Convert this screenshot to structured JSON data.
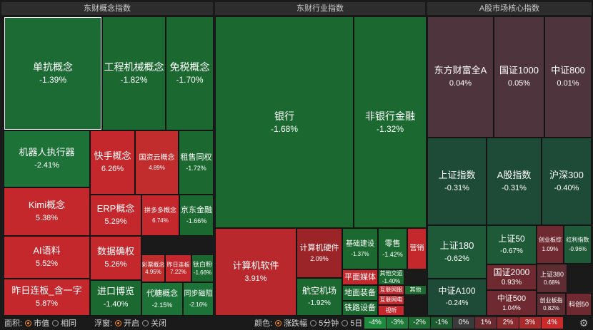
{
  "panels": [
    "东财概念指数",
    "东财行业指数",
    "A股市场核心指数"
  ],
  "tiles": [
    {
      "name": "单抗概念",
      "pct": "-1.39%",
      "color": "#1c6b34",
      "selected": true
    },
    {
      "name": "工程机械概念",
      "pct": "-1.82%",
      "color": "#1b6930"
    },
    {
      "name": "免税概念",
      "pct": "-1.70%",
      "color": "#1b6930"
    },
    {
      "name": "机器人执行器",
      "pct": "-2.41%",
      "color": "#1d7238"
    },
    {
      "name": "快手概念",
      "pct": "6.26%",
      "color": "#c4282c"
    },
    {
      "name": "国资云概念",
      "pct": "4.89%",
      "color": "#c12c2d"
    },
    {
      "name": "租售同权",
      "pct": "-1.72%",
      "color": "#1b6930"
    },
    {
      "name": "Kimi概念",
      "pct": "5.38%",
      "color": "#c4282c"
    },
    {
      "name": "ERP概念",
      "pct": "5.29%",
      "color": "#c4282c"
    },
    {
      "name": "拼多多概念",
      "pct": "6.74%",
      "color": "#c4282c"
    },
    {
      "name": "京东金融",
      "pct": "-1.66%",
      "color": "#1b6930"
    },
    {
      "name": "AI语料",
      "pct": "5.52%",
      "color": "#c4282c"
    },
    {
      "name": "数据确权",
      "pct": "5.26%",
      "color": "#c4282c"
    },
    {
      "name": "彩票概念",
      "pct": "4.95%",
      "color": "#c12c2d"
    },
    {
      "name": "昨日连板",
      "pct": "7.22%",
      "color": "#c4282c"
    },
    {
      "name": "钛白粉",
      "pct": "-1.66%",
      "color": "#1b6930"
    },
    {
      "name": "昨日连板_含一字",
      "pct": "5.87%",
      "color": "#c4282c"
    },
    {
      "name": "进口博览",
      "pct": "-1.40%",
      "color": "#1b6930"
    },
    {
      "name": "代糖概念",
      "pct": "-2.15%",
      "color": "#1d7238"
    },
    {
      "name": "同步磁阻",
      "pct": "-2.16%",
      "color": "#1d7238"
    },
    {
      "name": "银行",
      "pct": "-1.68%",
      "color": "#1b6930"
    },
    {
      "name": "非银行金融",
      "pct": "-1.32%",
      "color": "#1b6930"
    },
    {
      "name": "计算机软件",
      "pct": "3.91%",
      "color": "#b8282c"
    },
    {
      "name": "计算机硬件",
      "pct": "2.09%",
      "color": "#9a2428"
    },
    {
      "name": "基础建设",
      "pct": "-1.37%",
      "color": "#1b6930"
    },
    {
      "name": "零售",
      "pct": "-1.42%",
      "color": "#1b6930"
    },
    {
      "name": "营销",
      "pct": "",
      "color": "#c4282c"
    },
    {
      "name": "平面媒体",
      "pct": "",
      "color": "#c4282c"
    },
    {
      "name": "其他交运",
      "pct": "-1.40%",
      "color": "#1b6930"
    },
    {
      "name": "航空机场",
      "pct": "-1.92%",
      "color": "#1b6930"
    },
    {
      "name": "地面装备",
      "pct": "",
      "color": "#1b6930"
    },
    {
      "name": "互联网服",
      "pct": "",
      "color": "#c4282c"
    },
    {
      "name": "其他",
      "pct": "",
      "color": "#1b6930"
    },
    {
      "name": "铁路设备",
      "pct": "",
      "color": "#1b6930"
    },
    {
      "name": "互联网电",
      "pct": "",
      "color": "#c4282c"
    },
    {
      "name": "视听",
      "pct": "",
      "color": "#c4282c"
    },
    {
      "name": "东方财富全A",
      "pct": "0.04%",
      "color": "#4e343d"
    },
    {
      "name": "国证1000",
      "pct": "0.05%",
      "color": "#4e343d"
    },
    {
      "name": "中证800",
      "pct": "0.01%",
      "color": "#4e343d"
    },
    {
      "name": "上证指数",
      "pct": "-0.31%",
      "color": "#1e4a38"
    },
    {
      "name": "A股指数",
      "pct": "-0.31%",
      "color": "#1e4a38"
    },
    {
      "name": "沪深300",
      "pct": "-0.40%",
      "color": "#1e4a38"
    },
    {
      "name": "上证180",
      "pct": "-0.62%",
      "color": "#1e5a38"
    },
    {
      "name": "上证50",
      "pct": "-0.67%",
      "color": "#1e5a38"
    },
    {
      "name": "创业板综",
      "pct": "1.09%",
      "color": "#6e2a30"
    },
    {
      "name": "红利指数",
      "pct": "-0.96%",
      "color": "#1e5a38"
    },
    {
      "name": "国证2000",
      "pct": "0.93%",
      "color": "#6e2a30"
    },
    {
      "name": "上证380",
      "pct": "0.68%",
      "color": "#5e2c33"
    },
    {
      "name": "中证A100",
      "pct": "-0.24%",
      "color": "#1e4a38"
    },
    {
      "name": "中证500",
      "pct": "1.04%",
      "color": "#6e2a30"
    },
    {
      "name": "创业板指",
      "pct": "0.82%",
      "color": "#5e2c33"
    },
    {
      "name": "科创50",
      "pct": "",
      "color": "#6e2a30"
    }
  ],
  "controls": {
    "area_label": "面积:",
    "area_options": [
      "市值",
      "相同"
    ],
    "float_label": "浮窗:",
    "float_options": [
      "开启",
      "关闭"
    ],
    "color_label": "颜色:",
    "color_options": [
      "涨跌幅",
      "5分钟",
      "5日"
    ]
  },
  "legend": [
    {
      "label": "-4%",
      "color": "#1e8a3e"
    },
    {
      "label": "-3%",
      "color": "#1e7a38"
    },
    {
      "label": "-2%",
      "color": "#1d6a33"
    },
    {
      "label": "-1%",
      "color": "#1d5a30"
    },
    {
      "label": "0%",
      "color": "#3a3a3a"
    },
    {
      "label": "1%",
      "color": "#6a2a30"
    },
    {
      "label": "2%",
      "color": "#8a2a2e"
    },
    {
      "label": "3%",
      "color": "#aa2a2c"
    },
    {
      "label": "4%",
      "color": "#cc2a2a"
    }
  ],
  "icons": {
    "settings": "gear-icon"
  }
}
